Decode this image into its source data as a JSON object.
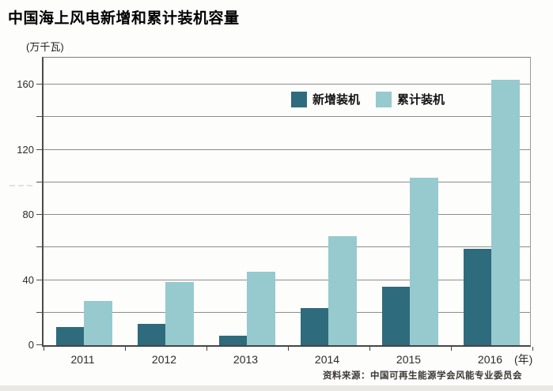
{
  "title": "中国海上风电新增和累计装机容量",
  "unit_label": "(万千瓦)",
  "axis_note": "(年)",
  "source": "资料来源：中国可再生能源学会风能专业委员会",
  "legend": [
    {
      "label": "新增装机",
      "color": "#2e6b7d"
    },
    {
      "label": "累计装机",
      "color": "#96cace"
    }
  ],
  "colors": {
    "new_installed": "#2e6b7d",
    "cumulative_installed": "#96cace",
    "gridline": "#8d8d8d",
    "axis": "#4c4c4c",
    "background": "#fdfdfb"
  },
  "chart_data": {
    "type": "bar",
    "title": "中国海上风电新增和累计装机容量",
    "categories": [
      "2011",
      "2012",
      "2013",
      "2014",
      "2015",
      "2016"
    ],
    "series": [
      {
        "name": "新增装机",
        "color": "#2e6b7d",
        "values": [
          11,
          13,
          6,
          23,
          36,
          59
        ]
      },
      {
        "name": "累计装机",
        "color": "#96cace",
        "values": [
          27,
          39,
          45,
          67,
          103,
          163
        ]
      }
    ],
    "xlabel": "(年)",
    "ylabel": "(万千瓦)",
    "ylim": [
      0,
      178
    ],
    "yticks_labeled": [
      0,
      40,
      80,
      120,
      160
    ],
    "grid_step": 20,
    "grid": true,
    "legend_position": "top-center-inside",
    "source": "资料来源：中国可再生能源学会风能专业委员会"
  }
}
